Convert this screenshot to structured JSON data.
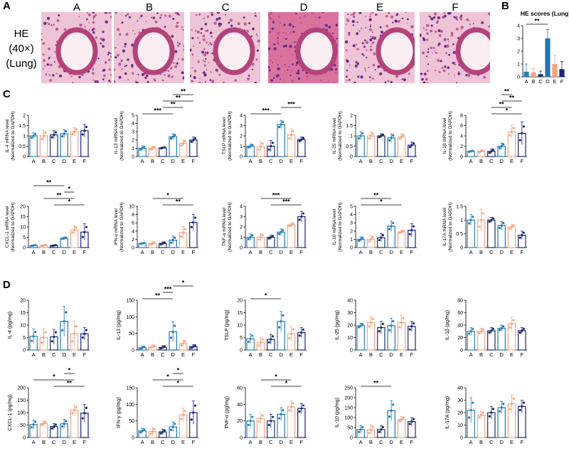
{
  "panel_letters": {
    "a": "A",
    "b": "B",
    "c": "C",
    "d": "D"
  },
  "he": {
    "row_label": [
      "HE",
      "(40×)",
      "(Lung)"
    ],
    "columns": [
      "A",
      "B",
      "C",
      "D",
      "E",
      "F"
    ]
  },
  "colors": {
    "A": "#2b83ba",
    "B": "#f4a582",
    "C": "#1a2d6b",
    "D": "#1f78b4",
    "E": "#f4a582",
    "F": "#1a237e",
    "tissue": "#e8a9c4",
    "nuclei": "#5b2a7e"
  },
  "chart_data": [
    {
      "id": "B",
      "type": "bar",
      "title": "HE scores (Lung)",
      "categories": [
        "A",
        "B",
        "C",
        "D",
        "E",
        "F"
      ],
      "values": [
        0.4,
        0.35,
        0.2,
        3.0,
        1.0,
        0.6
      ],
      "errors": [
        0.6,
        0.3,
        0.25,
        0.7,
        0.7,
        0.6
      ],
      "ylim": [
        0,
        4
      ],
      "yticks": [
        0,
        1,
        2,
        3,
        4
      ],
      "ylabel": "",
      "annotations": [
        {
          "text": "**",
          "from": "A",
          "to": "D"
        }
      ]
    },
    {
      "id": "C1",
      "type": "bar",
      "ylabel": "IL-4 mRNA level (Normalized to GAPDH)",
      "categories": [
        "A",
        "B",
        "C",
        "D",
        "E",
        "F"
      ],
      "values": [
        1.0,
        1.0,
        1.05,
        1.1,
        1.2,
        1.25
      ],
      "errors": [
        0.15,
        0.25,
        0.2,
        0.2,
        0.2,
        0.3
      ],
      "ylim": [
        0,
        2.0
      ],
      "yticks": [
        0,
        0.5,
        1.0,
        1.5,
        2.0
      ],
      "annotations": []
    },
    {
      "id": "C2",
      "type": "bar",
      "ylabel": "IL-13 mRNA level (Normalized to GAPDH)",
      "categories": [
        "A",
        "B",
        "C",
        "D",
        "E",
        "F"
      ],
      "values": [
        1.0,
        1.0,
        1.05,
        2.4,
        1.6,
        2.0
      ],
      "errors": [
        0.3,
        0.25,
        0.1,
        0.35,
        0.4,
        0.35
      ],
      "ylim": [
        0,
        5
      ],
      "yticks": [
        0,
        1,
        2,
        3,
        4,
        5
      ],
      "annotations": [
        {
          "text": "***",
          "from": "A",
          "to": "D"
        },
        {
          "text": "**",
          "from": "C",
          "to": "E"
        },
        {
          "text": "**",
          "from": "C",
          "to": "F"
        },
        {
          "text": "**",
          "from": "D",
          "to": "F"
        }
      ]
    },
    {
      "id": "C3",
      "type": "bar",
      "ylabel": "TSLP mRNA level (Normalized to GAPDH)",
      "categories": [
        "A",
        "B",
        "C",
        "D",
        "E",
        "F"
      ],
      "values": [
        1.0,
        0.95,
        1.0,
        3.1,
        2.1,
        1.65
      ],
      "errors": [
        0.2,
        0.5,
        0.55,
        0.4,
        0.6,
        0.25
      ],
      "ylim": [
        0,
        4
      ],
      "yticks": [
        0,
        1,
        2,
        3,
        4
      ],
      "annotations": [
        {
          "text": "***",
          "from": "A",
          "to": "D"
        },
        {
          "text": "***",
          "from": "D",
          "to": "F"
        }
      ]
    },
    {
      "id": "C4",
      "type": "bar",
      "ylabel": "IL-25 mRNA level (Normalized to GAPDH)",
      "categories": [
        "A",
        "B",
        "C",
        "D",
        "E",
        "F"
      ],
      "values": [
        1.0,
        1.0,
        1.0,
        0.9,
        0.95,
        0.55
      ],
      "errors": [
        0.2,
        0.2,
        0.1,
        0.2,
        0.15,
        0.15
      ],
      "ylim": [
        0,
        2.0
      ],
      "yticks": [
        0,
        0.5,
        1.0,
        1.5,
        2.0
      ],
      "annotations": []
    },
    {
      "id": "C5",
      "type": "bar",
      "ylabel": "IL-1β mRNA level (Normalized to GAPDH)",
      "categories": [
        "A",
        "B",
        "C",
        "D",
        "E",
        "F"
      ],
      "values": [
        1.0,
        1.0,
        1.0,
        2.0,
        4.8,
        4.5
      ],
      "errors": [
        0.15,
        0.3,
        0.5,
        0.6,
        1.2,
        2.2
      ],
      "ylim": [
        0,
        8
      ],
      "yticks": [
        0,
        2,
        4,
        6,
        8
      ],
      "annotations": [
        {
          "text": "*",
          "from": "C",
          "to": "F"
        },
        {
          "text": "**",
          "from": "C",
          "to": "E"
        },
        {
          "text": "**",
          "from": "D",
          "to": "F"
        },
        {
          "text": "**",
          "from": "D",
          "to": "E"
        }
      ]
    },
    {
      "id": "C6",
      "type": "bar",
      "ylabel": "CXCL-1 mRNA level (Normalized to GAPDH)",
      "categories": [
        "A",
        "B",
        "C",
        "D",
        "E",
        "F"
      ],
      "values": [
        1.0,
        1.0,
        1.0,
        4.5,
        8.5,
        7.5
      ],
      "errors": [
        0.3,
        0.3,
        0.3,
        0.5,
        2.0,
        4.0
      ],
      "ylim": [
        0,
        20
      ],
      "yticks": [
        0,
        5,
        10,
        15,
        20
      ],
      "annotations": [
        {
          "text": "*",
          "from": "C",
          "to": "F"
        },
        {
          "text": "**",
          "from": "B",
          "to": "E"
        },
        {
          "text": "*",
          "from": "D",
          "to": "E"
        },
        {
          "text": "**",
          "from": "A",
          "to": "D"
        }
      ]
    },
    {
      "id": "C7",
      "type": "bar",
      "ylabel": "IFN-γ mRNA level (Normalized to GAPDH)",
      "categories": [
        "A",
        "B",
        "C",
        "D",
        "E",
        "F"
      ],
      "values": [
        1.0,
        1.0,
        1.0,
        1.8,
        3.6,
        6.1
      ],
      "errors": [
        0.2,
        0.4,
        0.4,
        1.0,
        1.5,
        1.9
      ],
      "ylim": [
        0,
        10
      ],
      "yticks": [
        0,
        2,
        4,
        6,
        8,
        10
      ],
      "annotations": [
        {
          "text": "**",
          "from": "C",
          "to": "F"
        },
        {
          "text": "*",
          "from": "B",
          "to": "E"
        }
      ]
    },
    {
      "id": "C8",
      "type": "bar",
      "ylabel": "TNF-α mRNA level (Normalized to GAPDH)",
      "categories": [
        "A",
        "B",
        "C",
        "D",
        "E",
        "F"
      ],
      "values": [
        1.0,
        1.0,
        1.0,
        1.5,
        2.2,
        3.0
      ],
      "errors": [
        0.3,
        0.35,
        0.2,
        0.3,
        0.2,
        0.5
      ],
      "ylim": [
        0,
        4
      ],
      "yticks": [
        0,
        1,
        2,
        3,
        4
      ],
      "annotations": [
        {
          "text": "***",
          "from": "C",
          "to": "F"
        },
        {
          "text": "***",
          "from": "B",
          "to": "E"
        }
      ]
    },
    {
      "id": "C9",
      "type": "bar",
      "ylabel": "IL-10 mRNA level (Normalized to GAPDH)",
      "categories": [
        "A",
        "B",
        "C",
        "D",
        "E",
        "F"
      ],
      "values": [
        1.0,
        1.0,
        1.2,
        2.6,
        1.9,
        2.1
      ],
      "errors": [
        0.3,
        0.4,
        0.5,
        0.6,
        0.2,
        0.8
      ],
      "ylim": [
        0,
        5
      ],
      "yticks": [
        0,
        1,
        2,
        3,
        4,
        5
      ],
      "annotations": [
        {
          "text": "*",
          "from": "A",
          "to": "E"
        },
        {
          "text": "**",
          "from": "A",
          "to": "D"
        }
      ]
    },
    {
      "id": "C10",
      "type": "bar",
      "ylabel": "IL-17A mRNA level (Normalized to GAPDH)",
      "categories": [
        "A",
        "B",
        "C",
        "D",
        "E",
        "F"
      ],
      "values": [
        1.0,
        1.0,
        1.0,
        0.8,
        0.75,
        0.45
      ],
      "errors": [
        0.2,
        0.4,
        0.1,
        0.15,
        0.1,
        0.15
      ],
      "ylim": [
        0,
        1.5
      ],
      "yticks": [
        0,
        0.5,
        1.0,
        1.5
      ],
      "annotations": []
    },
    {
      "id": "D1",
      "type": "bar",
      "ylabel": "IL-4 (pg/mg)",
      "categories": [
        "A",
        "B",
        "C",
        "D",
        "E",
        "F"
      ],
      "values": [
        5.5,
        5.0,
        5.3,
        11.5,
        6.5,
        6.5
      ],
      "errors": [
        3.0,
        3.5,
        3.0,
        6.0,
        5.0,
        2.5
      ],
      "ylim": [
        0,
        20
      ],
      "yticks": [
        0,
        5,
        10,
        15,
        20
      ],
      "annotations": []
    },
    {
      "id": "D2",
      "type": "bar",
      "ylabel": "IL-13 (pg/mg)",
      "categories": [
        "A",
        "B",
        "C",
        "D",
        "E",
        "F"
      ],
      "values": [
        7,
        10,
        8,
        55,
        20,
        10
      ],
      "errors": [
        5,
        5,
        5,
        30,
        10,
        6
      ],
      "ylim": [
        0,
        150
      ],
      "yticks": [
        0,
        50,
        100,
        150
      ],
      "annotations": [
        {
          "text": "**",
          "from": "A",
          "to": "D"
        },
        {
          "text": "***",
          "from": "C",
          "to": "D"
        },
        {
          "text": "*",
          "from": "D",
          "to": "F"
        }
      ]
    },
    {
      "id": "D3",
      "type": "bar",
      "ylabel": "TSLP (pg/mg)",
      "categories": [
        "A",
        "B",
        "C",
        "D",
        "E",
        "F"
      ],
      "values": [
        4.5,
        3.0,
        4.3,
        11.5,
        6.5,
        7.0
      ],
      "errors": [
        2.0,
        2.0,
        2.0,
        4.0,
        3.0,
        2.0
      ],
      "ylim": [
        0,
        20
      ],
      "yticks": [
        0,
        5,
        10,
        15,
        20
      ],
      "annotations": [
        {
          "text": "*",
          "from": "A",
          "to": "D"
        }
      ]
    },
    {
      "id": "D4",
      "type": "bar",
      "ylabel": "IL-25 (pg/mg)",
      "categories": [
        "A",
        "B",
        "C",
        "D",
        "E",
        "F"
      ],
      "values": [
        19.5,
        22,
        18,
        19.5,
        22,
        19
      ],
      "errors": [
        2,
        5,
        5,
        6,
        6,
        4
      ],
      "ylim": [
        0,
        40
      ],
      "yticks": [
        0,
        10,
        20,
        30,
        40
      ],
      "annotations": []
    },
    {
      "id": "D5",
      "type": "bar",
      "ylabel": "IL-1β (pg/mg)",
      "categories": [
        "A",
        "B",
        "C",
        "D",
        "E",
        "F"
      ],
      "values": [
        30,
        30,
        31,
        35,
        42,
        31
      ],
      "errors": [
        6,
        5,
        5,
        5,
        10,
        5
      ],
      "ylim": [
        0,
        80
      ],
      "yticks": [
        0,
        20,
        40,
        60,
        80
      ],
      "annotations": []
    },
    {
      "id": "D6",
      "type": "bar",
      "ylabel": "CXCL-1 (pg/mg)",
      "categories": [
        "A",
        "B",
        "C",
        "D",
        "E",
        "F"
      ],
      "values": [
        52,
        56,
        44,
        55,
        110,
        98
      ],
      "errors": [
        18,
        10,
        12,
        18,
        20,
        35
      ],
      "ylim": [
        0,
        200
      ],
      "yticks": [
        0,
        50,
        100,
        150,
        200
      ],
      "annotations": [
        {
          "text": "**",
          "from": "C",
          "to": "F"
        },
        {
          "text": "*",
          "from": "A",
          "to": "E"
        },
        {
          "text": "*",
          "from": "D",
          "to": "E"
        }
      ]
    },
    {
      "id": "D7",
      "type": "bar",
      "ylabel": "IFN-γ (pg/mg)",
      "categories": [
        "A",
        "B",
        "C",
        "D",
        "E",
        "F"
      ],
      "values": [
        20,
        18,
        17,
        32,
        68,
        75
      ],
      "errors": [
        8,
        12,
        8,
        15,
        20,
        35
      ],
      "ylim": [
        0,
        150
      ],
      "yticks": [
        0,
        50,
        100,
        150
      ],
      "annotations": [
        {
          "text": "*",
          "from": "C",
          "to": "F"
        },
        {
          "text": "*",
          "from": "B",
          "to": "E"
        },
        {
          "text": "*",
          "from": "D",
          "to": "E"
        }
      ]
    },
    {
      "id": "D8",
      "type": "bar",
      "ylabel": "TNF-α (pg/mg)",
      "categories": [
        "A",
        "B",
        "C",
        "D",
        "E",
        "F"
      ],
      "values": [
        20,
        23,
        20,
        28,
        37,
        35
      ],
      "errors": [
        8,
        6,
        8,
        8,
        7,
        6
      ],
      "ylim": [
        0,
        60
      ],
      "yticks": [
        0,
        20,
        40,
        60
      ],
      "annotations": [
        {
          "text": "*",
          "from": "C",
          "to": "F"
        },
        {
          "text": "*",
          "from": "B",
          "to": "E"
        }
      ]
    },
    {
      "id": "D9",
      "type": "bar",
      "ylabel": "IL-10 (pg/mg)",
      "categories": [
        "A",
        "B",
        "C",
        "D",
        "E",
        "F"
      ],
      "values": [
        40,
        38,
        40,
        135,
        90,
        80
      ],
      "errors": [
        20,
        25,
        20,
        50,
        15,
        20
      ],
      "ylim": [
        0,
        250
      ],
      "yticks": [
        0,
        50,
        100,
        150,
        200,
        250
      ],
      "annotations": [
        {
          "text": "**",
          "from": "A",
          "to": "D"
        }
      ]
    },
    {
      "id": "D10",
      "type": "bar",
      "ylabel": "IL-17A (pg/mg)",
      "categories": [
        "A",
        "B",
        "C",
        "D",
        "E",
        "F"
      ],
      "values": [
        22,
        18,
        20,
        24,
        27,
        25
      ],
      "errors": [
        10,
        3,
        5,
        5,
        7,
        5
      ],
      "ylim": [
        0,
        40
      ],
      "yticks": [
        0,
        10,
        20,
        30,
        40
      ],
      "annotations": []
    }
  ]
}
